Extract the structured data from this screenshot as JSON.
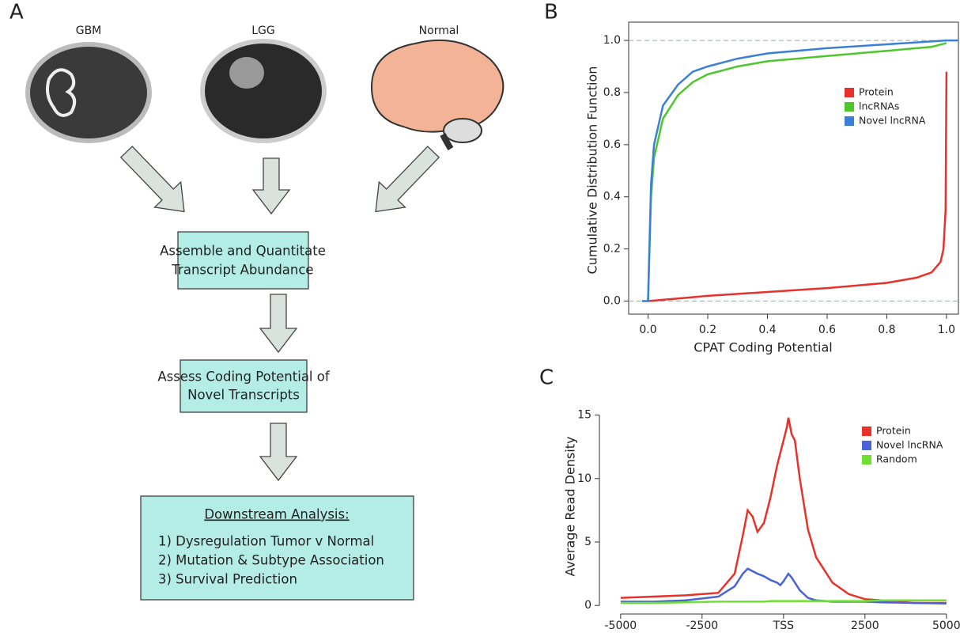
{
  "panel_labels": [
    "A",
    "B",
    "C"
  ],
  "diagram": {
    "images": [
      {
        "label": "GBM"
      },
      {
        "label": "LGG"
      },
      {
        "label": "Normal"
      }
    ],
    "boxes": [
      {
        "lines": [
          "Assemble and Quantitate",
          "Transcript Abundance"
        ]
      },
      {
        "lines": [
          "Assess Coding Potential of",
          "Novel Transcripts"
        ]
      },
      {
        "heading": "Downstream Analysis:",
        "lines": [
          "1)  Dysregulation Tumor v Normal",
          "2)  Mutation & Subtype Association",
          "3)  Survival Prediction"
        ]
      }
    ]
  },
  "chart_data": [
    {
      "type": "line",
      "x_label": "CPAT Coding Potential",
      "y_label": "Cumulative Distribution Function",
      "xlim": [
        -0.065,
        1.04
      ],
      "ylim": [
        -0.05,
        1.07
      ],
      "xticks": [
        {
          "value": 0,
          "label": "0.0"
        },
        0.2,
        0.4,
        0.6,
        0.8,
        {
          "value": 1,
          "label": "1.0"
        }
      ],
      "yticks": [
        {
          "value": 0,
          "label": "0.0"
        },
        0.2,
        0.4,
        0.6,
        0.8,
        {
          "value": 1,
          "label": "1.0"
        }
      ],
      "hlines": [
        0,
        1
      ],
      "frame": true,
      "series": [
        {
          "name": "Protein",
          "color": "#e8312a",
          "x": [
            0,
            0.1,
            0.2,
            0.4,
            0.6,
            0.8,
            0.9,
            0.95,
            0.98,
            0.99,
            0.997,
            1.0
          ],
          "values": [
            0,
            0.01,
            0.02,
            0.035,
            0.05,
            0.07,
            0.09,
            0.11,
            0.15,
            0.2,
            0.35,
            0.88
          ]
        },
        {
          "name": "lncRNAs",
          "color": "#4fc62d",
          "x": [
            0,
            0.01,
            0.02,
            0.05,
            0.1,
            0.15,
            0.2,
            0.3,
            0.4,
            0.6,
            0.8,
            0.9,
            0.95,
            1.0
          ],
          "values": [
            0,
            0.4,
            0.55,
            0.7,
            0.79,
            0.84,
            0.87,
            0.9,
            0.92,
            0.94,
            0.96,
            0.97,
            0.975,
            0.99
          ]
        },
        {
          "name": "Novel lncRNA",
          "color": "#3c7fd6",
          "x": [
            -0.02,
            0,
            0.01,
            0.02,
            0.05,
            0.1,
            0.15,
            0.2,
            0.3,
            0.4,
            0.6,
            0.8,
            1.0,
            1.04
          ],
          "values": [
            0,
            0,
            0.45,
            0.6,
            0.75,
            0.83,
            0.88,
            0.9,
            0.93,
            0.95,
            0.97,
            0.985,
            1.0,
            1.0
          ]
        }
      ]
    },
    {
      "type": "line",
      "y_label": "Average Read Density",
      "xlim": [
        -5360,
        5320
      ],
      "ylim": [
        -0.3,
        15.6
      ],
      "xticks": [
        -5000,
        -2500,
        {
          "value": 0,
          "label": "TSS"
        },
        2500,
        5000
      ],
      "yticks": [
        0,
        5,
        10,
        15
      ],
      "frame": false,
      "x": [
        -5000,
        -4000,
        -3000,
        -2000,
        -1500,
        -1250,
        -1100,
        -950,
        -800,
        -600,
        -400,
        -200,
        -100,
        0,
        100,
        150,
        250,
        350,
        500,
        750,
        1000,
        1500,
        2000,
        2500,
        3000,
        4000,
        5000
      ],
      "series": [
        {
          "name": "Protein",
          "color": "#e8312a",
          "values": [
            0.6,
            0.7,
            0.8,
            1.0,
            2.5,
            5.5,
            7.5,
            7.0,
            5.8,
            6.5,
            8.5,
            11,
            12,
            13,
            14,
            14.8,
            13.5,
            13,
            10,
            6,
            3.8,
            1.8,
            0.9,
            0.5,
            0.4,
            0.2,
            0.2
          ]
        },
        {
          "name": "Novel lncRNA",
          "color": "#4a64d8",
          "values": [
            0.3,
            0.3,
            0.4,
            0.7,
            1.5,
            2.5,
            2.9,
            2.7,
            2.5,
            2.3,
            2.0,
            1.8,
            1.6,
            1.9,
            2.3,
            2.5,
            2.2,
            1.8,
            1.2,
            0.6,
            0.4,
            0.3,
            0.3,
            0.3,
            0.25,
            0.2,
            0.15
          ]
        },
        {
          "name": "Random",
          "color": "#6fe02f",
          "values": [
            0.2,
            0.2,
            0.25,
            0.3,
            0.3,
            0.3,
            0.3,
            0.3,
            0.3,
            0.3,
            0.35,
            0.35,
            0.35,
            0.35,
            0.35,
            0.35,
            0.35,
            0.35,
            0.35,
            0.35,
            0.35,
            0.35,
            0.35,
            0.35,
            0.4,
            0.4,
            0.4
          ]
        }
      ]
    }
  ]
}
